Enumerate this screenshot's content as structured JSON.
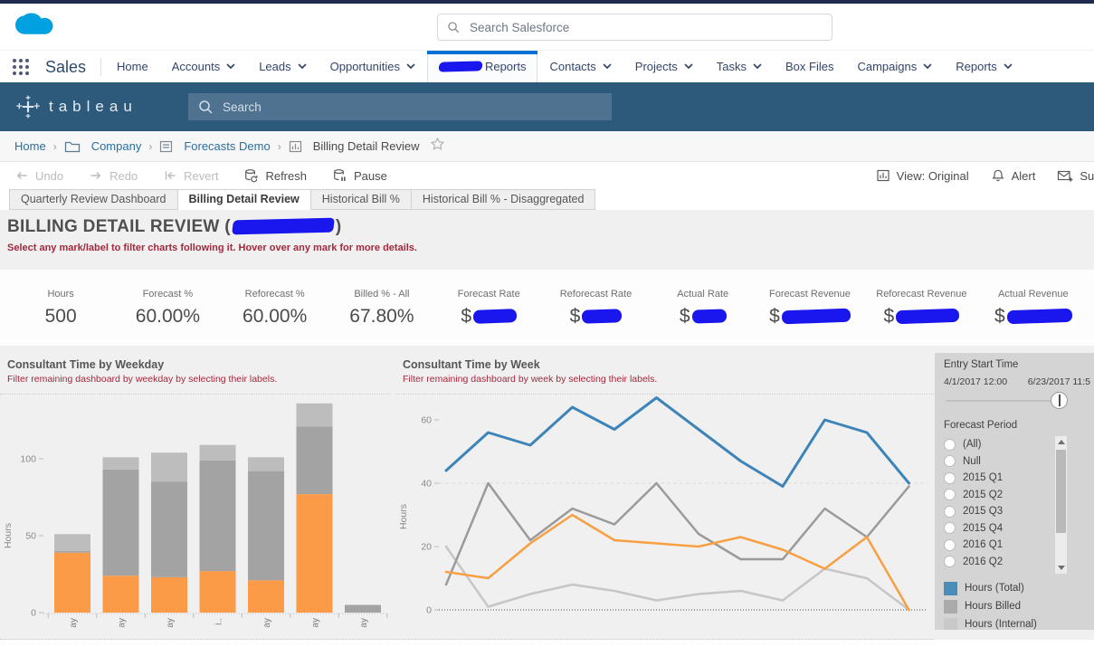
{
  "salesforce": {
    "logo": "salesforce-cloud-icon",
    "search_placeholder": "Search Salesforce",
    "app_name": "Sales",
    "nav_items": [
      {
        "label": "Home"
      },
      {
        "label": "Accounts",
        "chevron": true
      },
      {
        "label": "Leads",
        "chevron": true
      },
      {
        "label": "Opportunities",
        "chevron": true
      },
      {
        "label": "Reports",
        "active": true,
        "redacted_prefix": true
      },
      {
        "label": "Contacts",
        "chevron": true
      },
      {
        "label": "Projects",
        "chevron": true
      },
      {
        "label": "Tasks",
        "chevron": true
      },
      {
        "label": "Box Files"
      },
      {
        "label": "Campaigns",
        "chevron": true
      },
      {
        "label": "Reports",
        "chevron": true
      }
    ]
  },
  "tableau": {
    "logo_text": "tableau",
    "search_placeholder": "Search"
  },
  "breadcrumb": {
    "separator": "›",
    "items": [
      {
        "label": "Home",
        "icon": null,
        "link": true
      },
      {
        "label": "Company",
        "icon": "folder-icon",
        "link": true
      },
      {
        "label": "Forecasts Demo",
        "icon": "workbook-icon",
        "link": true
      },
      {
        "label": "Billing Detail Review",
        "icon": "view-icon",
        "link": false
      }
    ],
    "favorite_icon": "star-icon"
  },
  "toolbar": {
    "undo": "Undo",
    "redo": "Redo",
    "revert": "Revert",
    "refresh": "Refresh",
    "pause": "Pause",
    "view": "View: Original",
    "alert": "Alert",
    "subscribe": "Subs"
  },
  "sheet_tabs": {
    "active_index": 1,
    "tabs": [
      "Quarterly Review Dashboard",
      "Billing Detail Review",
      "Historical Bill %",
      "Historical Bill % - Disaggregated"
    ]
  },
  "dashboard": {
    "title_prefix": "BILLING DETAIL REVIEW  (",
    "title_suffix": ")",
    "title_redacted": true,
    "caption": "Select any mark/label to filter charts following it. Hover over any mark for more details.",
    "kpis": [
      {
        "label": "Hours",
        "value": "500"
      },
      {
        "label": "Forecast %",
        "value": "60.00%"
      },
      {
        "label": "Reforecast %",
        "value": "60.00%"
      },
      {
        "label": "Billed % - All",
        "value": "67.80%"
      },
      {
        "label": "Forecast Rate",
        "value": "$",
        "redacted": true,
        "redact_width": 48
      },
      {
        "label": "Reforecast Rate",
        "value": "$",
        "redacted": true,
        "redact_width": 44
      },
      {
        "label": "Actual Rate",
        "value": "$",
        "redacted": true,
        "redact_width": 38
      },
      {
        "label": "Forecast Revenue",
        "value": "$",
        "redacted": true,
        "redact_width": 76
      },
      {
        "label": "Reforecast Revenue",
        "value": "$",
        "redacted": true,
        "redact_width": 70
      },
      {
        "label": "Actual Revenue",
        "value": "$",
        "redacted": true,
        "redact_width": 72
      }
    ],
    "filter_panel": {
      "entry_start_time": {
        "title": "Entry Start Time",
        "start": "4/1/2017 12:00",
        "end": "6/23/2017 11:5"
      },
      "forecast_period": {
        "title": "Forecast Period",
        "options": [
          "(All)",
          "Null",
          "2015 Q1",
          "2015 Q2",
          "2015 Q3",
          "2015 Q4",
          "2016 Q1",
          "2016 Q2"
        ]
      },
      "legend": [
        {
          "label": "Hours (Total)",
          "color": "#4a8cba"
        },
        {
          "label": "Hours Billed",
          "color": "#ababab"
        },
        {
          "label": "Hours (Internal)",
          "color": "#c9c9c9"
        }
      ]
    }
  },
  "chart_data": [
    {
      "type": "bar",
      "stacked": true,
      "title": "Consultant Time by Weekday",
      "subtitle": "Filter remaining dashboard by weekday by selecting their labels.",
      "ylabel": "Hours",
      "yticks": [
        0,
        50,
        100
      ],
      "ylim": [
        0,
        145
      ],
      "categories": [
        "ay",
        "ay",
        "ay",
        "i..",
        "ay",
        "ay",
        "ay"
      ],
      "series": [
        {
          "name": "orange-segment",
          "color": "#fb9a47",
          "values": [
            39,
            24,
            23,
            27,
            21,
            77,
            0
          ]
        },
        {
          "name": "gray-segment",
          "color": "#a3a3a3",
          "values": [
            1,
            69,
            62,
            72,
            71,
            44,
            5
          ]
        },
        {
          "name": "light-gray-segment",
          "color": "#bdbdbd",
          "values": [
            11,
            8,
            19,
            10,
            9,
            15,
            0
          ]
        }
      ]
    },
    {
      "type": "line",
      "title": "Consultant Time by Week",
      "subtitle": "Filter remaining dashboard by week by selecting their labels.",
      "ylabel": "Hours",
      "yticks": [
        0,
        20,
        40,
        60
      ],
      "ylim": [
        0,
        72
      ],
      "x": [
        1,
        2,
        3,
        4,
        5,
        6,
        7,
        8,
        9,
        10,
        11,
        12
      ],
      "grid": "dashed line at y=40, dotted baseline at y=0",
      "series": [
        {
          "name": "Hours (Internal)",
          "color": "#c6c6c6",
          "width": 2.5,
          "values": [
            20,
            1,
            5,
            8,
            6,
            3,
            5,
            6,
            3,
            13,
            10,
            0
          ]
        },
        {
          "name": "Hours Billed",
          "color": "#9a9a9a",
          "width": 2.5,
          "values": [
            8,
            40,
            22,
            32,
            27,
            40,
            24,
            16,
            16,
            32,
            23,
            39
          ]
        },
        {
          "name": "unlabeled-orange",
          "color": "#f99f43",
          "width": 2.5,
          "values": [
            12,
            10,
            21,
            30,
            22,
            21,
            20,
            23,
            19,
            13,
            23,
            0
          ]
        },
        {
          "name": "Hours (Total)",
          "color": "#3d84b8",
          "width": 3,
          "values": [
            44,
            56,
            52,
            64,
            57,
            67,
            57,
            47,
            39,
            60,
            56,
            40
          ]
        }
      ]
    }
  ]
}
